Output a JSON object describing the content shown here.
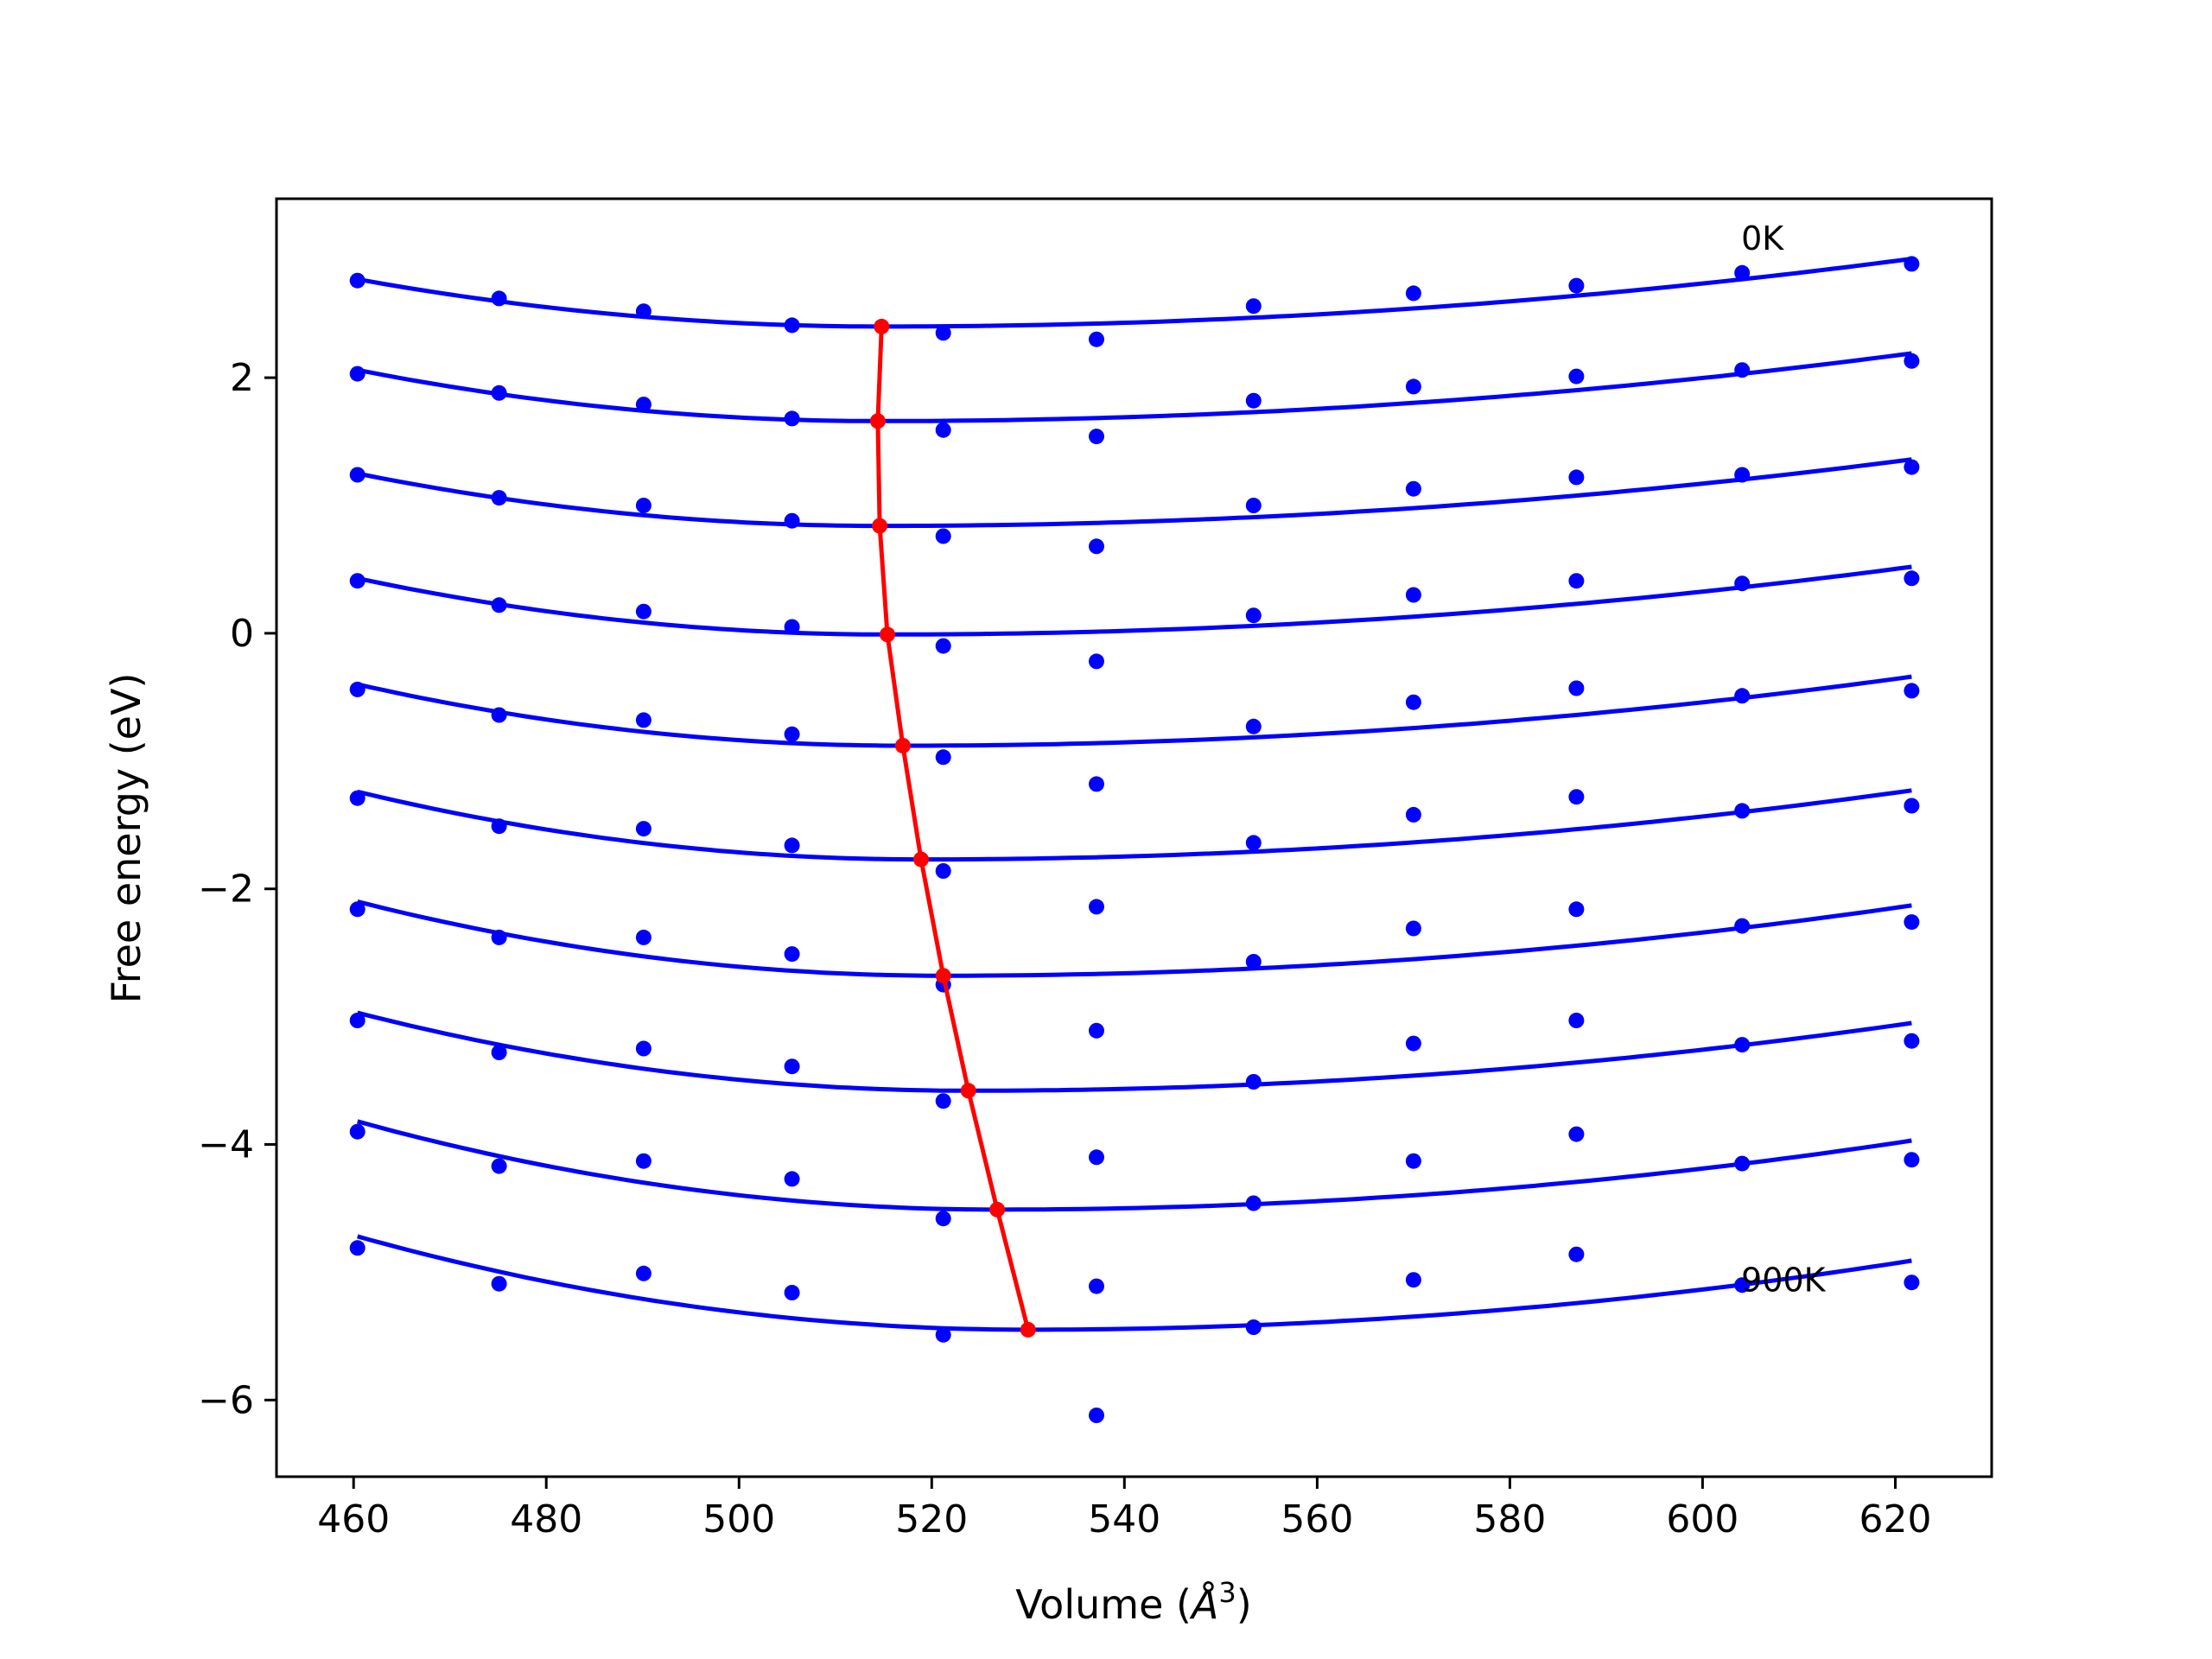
{
  "chart_data": {
    "type": "scatter",
    "title": "",
    "xlabel": "Volume (",
    "xlabel_unit_letter": "Å",
    "xlabel_unit_power": "3",
    "xlabel_close": ")",
    "ylabel": "Free energy (eV)",
    "xlim": [
      452,
      630
    ],
    "ylim": [
      -6.6,
      3.4
    ],
    "xticks": [
      460,
      480,
      500,
      520,
      540,
      560,
      580,
      600,
      620
    ],
    "yticks": [
      -6,
      -4,
      -2,
      0,
      2
    ],
    "ytick_labels": [
      "−6",
      "−4",
      "−2",
      "0",
      "2"
    ],
    "grid": false,
    "legend": "none",
    "colors": {
      "points": "#0000ff",
      "fit": "#0000ff",
      "minimum": "#ff0000"
    },
    "annotations": [
      {
        "text": "0K",
        "x": 604,
        "y": 3.0
      },
      {
        "text": "900K",
        "x": 604,
        "y": -5.15
      }
    ],
    "volumes": [
      460.4,
      475.1,
      490.1,
      505.5,
      521.2,
      537.1,
      553.4,
      570.0,
      586.9,
      604.1,
      621.7
    ],
    "series": [
      {
        "values": [
          2.76,
          2.62,
          2.52,
          2.41,
          2.35,
          2.3,
          2.56,
          2.66,
          2.72,
          2.82,
          2.89
        ]
      },
      {
        "values": [
          2.03,
          1.88,
          1.79,
          1.68,
          1.59,
          1.54,
          1.82,
          1.93,
          2.01,
          2.06,
          2.13
        ]
      },
      {
        "values": [
          1.24,
          1.06,
          1.0,
          0.88,
          0.76,
          0.68,
          1.0,
          1.13,
          1.22,
          1.24,
          1.3
        ]
      },
      {
        "values": [
          0.41,
          0.22,
          0.17,
          0.05,
          -0.1,
          -0.22,
          0.14,
          0.3,
          0.41,
          0.39,
          0.43
        ]
      },
      {
        "values": [
          -0.44,
          -0.64,
          -0.68,
          -0.79,
          -0.97,
          -1.18,
          -0.73,
          -0.54,
          -0.43,
          -0.49,
          -0.45
        ]
      },
      {
        "values": [
          -1.29,
          -1.51,
          -1.53,
          -1.66,
          -1.86,
          -2.14,
          -1.64,
          -1.42,
          -1.28,
          -1.39,
          -1.35
        ]
      },
      {
        "values": [
          -2.16,
          -2.38,
          -2.38,
          -2.51,
          -2.75,
          -3.11,
          -2.57,
          -2.31,
          -2.16,
          -2.29,
          -2.26
        ]
      },
      {
        "values": [
          -3.03,
          -3.28,
          -3.25,
          -3.39,
          -3.66,
          -4.1,
          -3.51,
          -3.21,
          -3.03,
          -3.22,
          -3.19
        ]
      },
      {
        "values": [
          -3.9,
          -4.17,
          -4.13,
          -4.27,
          -4.58,
          -5.11,
          -4.46,
          -4.13,
          -3.92,
          -4.15,
          -4.12
        ]
      },
      {
        "values": [
          -4.81,
          -5.09,
          -5.01,
          -5.16,
          -5.49,
          -6.12,
          -5.43,
          -5.06,
          -4.86,
          -5.1,
          -5.08
        ]
      }
    ],
    "fits": [
      {
        "min_volume": 514.8,
        "min_energy": 2.4,
        "start": 2.77,
        "end": 2.93
      },
      {
        "min_volume": 514.4,
        "min_energy": 1.66,
        "start": 2.06,
        "end": 2.19
      },
      {
        "min_volume": 514.6,
        "min_energy": 0.84,
        "start": 1.25,
        "end": 1.36
      },
      {
        "min_volume": 515.4,
        "min_energy": -0.01,
        "start": 0.43,
        "end": 0.52
      },
      {
        "min_volume": 517.0,
        "min_energy": -0.88,
        "start": -0.4,
        "end": -0.34
      },
      {
        "min_volume": 518.9,
        "min_energy": -1.77,
        "start": -1.24,
        "end": -1.23
      },
      {
        "min_volume": 521.2,
        "min_energy": -2.68,
        "start": -2.1,
        "end": -2.13
      },
      {
        "min_volume": 523.8,
        "min_energy": -3.58,
        "start": -2.97,
        "end": -3.05
      },
      {
        "min_volume": 526.8,
        "min_energy": -4.51,
        "start": -3.82,
        "end": -3.97
      },
      {
        "min_volume": 530.0,
        "min_energy": -5.45,
        "start": -4.72,
        "end": -4.91
      }
    ]
  }
}
